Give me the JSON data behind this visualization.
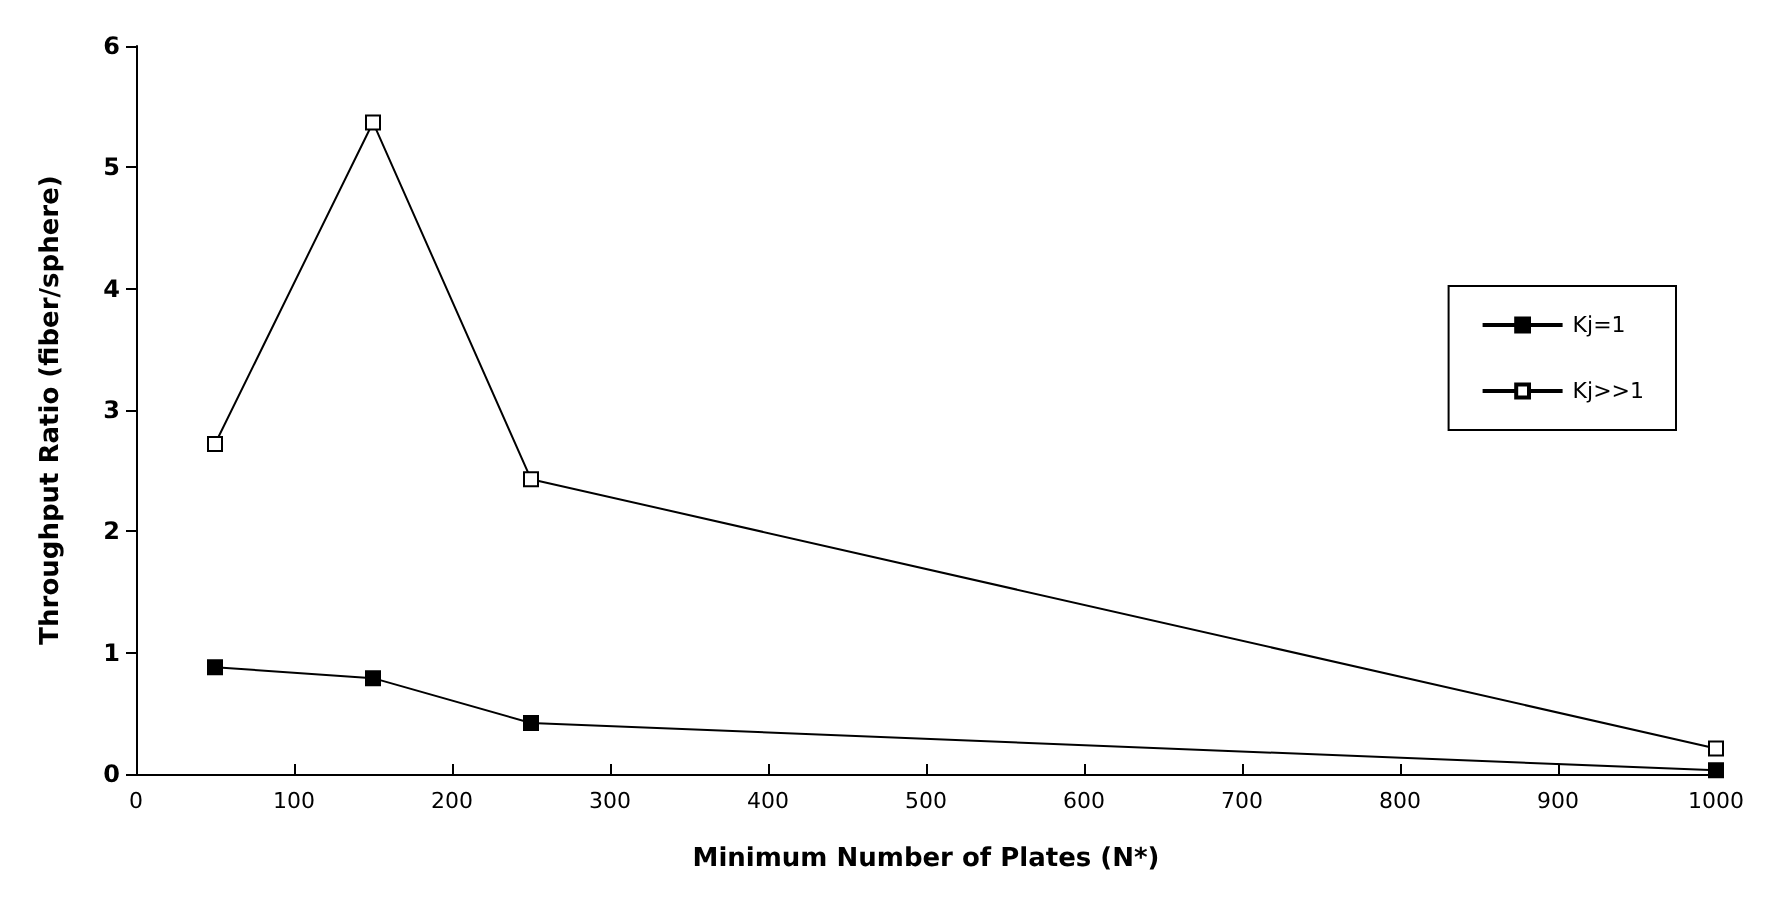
{
  "chart_data": {
    "type": "line",
    "xlabel": "Minimum Number of Plates (N*)",
    "ylabel": "Throughput Ratio (fiber/sphere)",
    "x": [
      50,
      150,
      250,
      1000
    ],
    "series": [
      {
        "name": "Kj=1",
        "color": "#000000",
        "values": [
          0.88,
          0.79,
          0.42,
          0.03
        ],
        "marker": "square"
      },
      {
        "name": "Kj>>1",
        "color": "#000000",
        "values": [
          2.72,
          5.37,
          2.43,
          0.21
        ],
        "marker": "square"
      }
    ],
    "xlim": [
      0,
      1000
    ],
    "xticks": [
      0,
      100,
      200,
      300,
      400,
      500,
      600,
      700,
      800,
      900,
      1000
    ],
    "ylim": [
      0,
      6
    ],
    "yticks": [
      0,
      1,
      2,
      3,
      4,
      5,
      6
    ],
    "grid": false,
    "legend": "right",
    "line_style": "solid"
  }
}
